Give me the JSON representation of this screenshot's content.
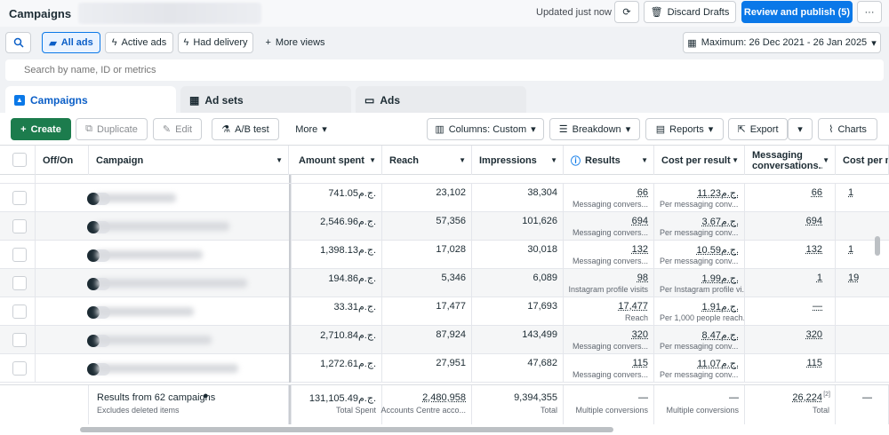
{
  "header": {
    "title": "Campaigns",
    "updated": "Updated just now",
    "discard_label": "Discard Drafts",
    "publish_label": "Review and publish (5)"
  },
  "filters": {
    "all_ads": "All ads",
    "active_ads": "Active ads",
    "had_delivery": "Had delivery",
    "more_views": "More views",
    "date_range": "Maximum: 26 Dec 2021 - 26 Jan 2025"
  },
  "search": {
    "placeholder": "Search by name, ID or metrics"
  },
  "tabs": [
    {
      "label": "Campaigns"
    },
    {
      "label": "Ad sets"
    },
    {
      "label": "Ads"
    }
  ],
  "toolbar": {
    "create": "Create",
    "duplicate": "Duplicate",
    "edit": "Edit",
    "ab_test": "A/B test",
    "more": "More",
    "columns": "Columns: Custom",
    "breakdown": "Breakdown",
    "reports": "Reports",
    "export": "Export",
    "charts": "Charts"
  },
  "columns": [
    "Off/On",
    "Campaign",
    "Amount spent",
    "Reach",
    "Impressions",
    "Results",
    "Cost per result",
    "Messaging conversations...",
    "Cost per messaging"
  ],
  "rows": [
    {
      "spent": "741.05ج.م.",
      "reach": "23,102",
      "impressions": "38,304",
      "results": "66",
      "results_sub": "Messaging convers...",
      "cost": "11.23ج.م.",
      "cost_sub": "Per messaging conv...",
      "msg": "66",
      "cpm": "1"
    },
    {
      "spent": "2,546.96ج.م.",
      "reach": "57,356",
      "impressions": "101,626",
      "results": "694",
      "results_sub": "Messaging convers...",
      "cost": "3.67ج.م.",
      "cost_sub": "Per messaging conv...",
      "msg": "694",
      "cpm": ""
    },
    {
      "spent": "1,398.13ج.م.",
      "reach": "17,028",
      "impressions": "30,018",
      "results": "132",
      "results_sub": "Messaging convers...",
      "cost": "10.59ج.م.",
      "cost_sub": "Per messaging conv...",
      "msg": "132",
      "cpm": "1"
    },
    {
      "spent": "194.86ج.م.",
      "reach": "5,346",
      "impressions": "6,089",
      "results": "98",
      "results_sub": "Instagram profile visits",
      "cost": "1.99ج.م.",
      "cost_sub": "Per Instagram profile vi...",
      "msg": "1",
      "cpm": "19"
    },
    {
      "spent": "33.31ج.م.",
      "reach": "17,477",
      "impressions": "17,693",
      "results": "17,477",
      "results_sub": "Reach",
      "cost": "1.91ج.م.",
      "cost_sub": "Per 1,000 people reach...",
      "msg": "—",
      "cpm": ""
    },
    {
      "spent": "2,710.84ج.م.",
      "reach": "87,924",
      "impressions": "143,499",
      "results": "320",
      "results_sub": "Messaging convers...",
      "cost": "8.47ج.م.",
      "cost_sub": "Per messaging conv...",
      "msg": "320",
      "cpm": ""
    },
    {
      "spent": "1,272.61ج.م.",
      "reach": "27,951",
      "impressions": "47,682",
      "results": "115",
      "results_sub": "Messaging convers...",
      "cost": "11.07ج.م.",
      "cost_sub": "Per messaging conv...",
      "msg": "115",
      "cpm": ""
    }
  ],
  "footer": {
    "label": "Results from 62 campaigns",
    "sub": "Excludes deleted items",
    "spent": "131,105.49ج.م.",
    "spent_sub": "Total Spent",
    "reach": "2,480,958",
    "reach_sub": "Accounts Centre acco...",
    "impressions": "9,394,355",
    "impressions_sub": "Total",
    "results": "—",
    "results_sub": "Multiple conversions",
    "cost": "—",
    "cost_sub": "Multiple conversions",
    "msg": "26,224",
    "msg_sub": "Total",
    "cpm": "—"
  }
}
